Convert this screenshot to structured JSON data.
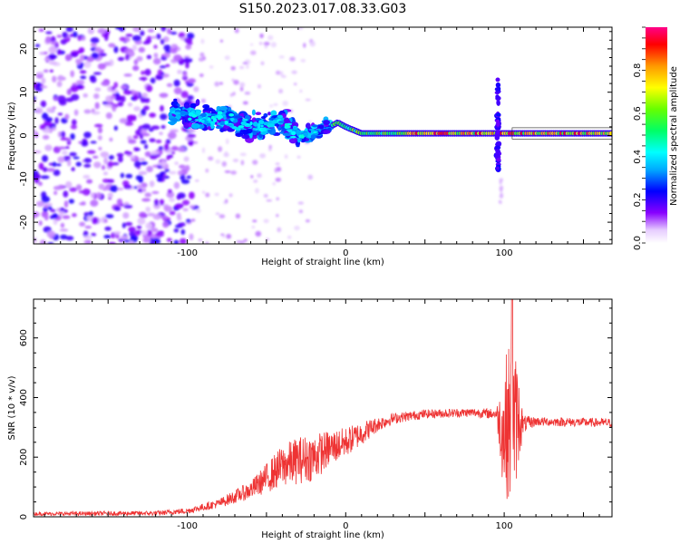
{
  "title": "S150.2023.017.08.33.G03",
  "colors": {
    "snr_line": "#ee3333",
    "axis": "#000000"
  },
  "chart_data": [
    {
      "type": "heatmap",
      "name": "spectrogram",
      "xlabel": "Height of straight line (km)",
      "ylabel": "Frequency (Hz)",
      "xlim": [
        -197,
        168
      ],
      "ylim": [
        -25,
        25
      ],
      "xticks": [
        -100,
        0,
        100
      ],
      "yticks": [
        -20,
        -10,
        0,
        10,
        20
      ],
      "colorbar": {
        "label": "Normalized spectral amplitude",
        "range": [
          0,
          1
        ],
        "ticks": [
          0.0,
          0.2,
          0.4,
          0.6,
          0.8
        ]
      },
      "ridge": {
        "description": "dominant frequency trace",
        "points": [
          [
            -110,
            5
          ],
          [
            -100,
            5
          ],
          [
            -90,
            4
          ],
          [
            -80,
            4
          ],
          [
            -70,
            3
          ],
          [
            -60,
            2
          ],
          [
            -50,
            2
          ],
          [
            -40,
            3
          ],
          [
            -30,
            0
          ],
          [
            -20,
            1
          ],
          [
            -10,
            2
          ],
          [
            -5,
            3
          ],
          [
            0,
            2
          ],
          [
            10,
            0.5
          ],
          [
            30,
            0.5
          ],
          [
            60,
            0.5
          ],
          [
            90,
            0.5
          ],
          [
            105,
            0.5
          ],
          [
            130,
            0.5
          ],
          [
            168,
            0.5
          ]
        ]
      },
      "anomaly": {
        "x": 96,
        "frequency_range": [
          -8,
          13
        ]
      }
    },
    {
      "type": "line",
      "name": "snr",
      "xlabel": "Height of straight line (km)",
      "ylabel": "SNR (10 * v/v)",
      "xlim": [
        -197,
        168
      ],
      "ylim": [
        0,
        730
      ],
      "xticks": [
        -100,
        0,
        100
      ],
      "yticks": [
        0,
        200,
        400,
        600
      ],
      "envelope": {
        "x": [
          -197,
          -120,
          -100,
          -80,
          -60,
          -50,
          -40,
          -30,
          -20,
          -10,
          0,
          10,
          20,
          30,
          50,
          80,
          95,
          100,
          102,
          105,
          108,
          112,
          120,
          168
        ],
        "mean": [
          10,
          12,
          20,
          45,
          90,
          130,
          170,
          190,
          200,
          230,
          250,
          280,
          310,
          330,
          345,
          350,
          345,
          280,
          320,
          300,
          330,
          310,
          320,
          315
        ],
        "spread": [
          6,
          8,
          10,
          15,
          30,
          50,
          70,
          80,
          80,
          60,
          50,
          40,
          25,
          18,
          15,
          15,
          18,
          220,
          260,
          280,
          200,
          30,
          15,
          15
        ]
      },
      "peak": {
        "x": 105,
        "value": 730
      }
    }
  ]
}
